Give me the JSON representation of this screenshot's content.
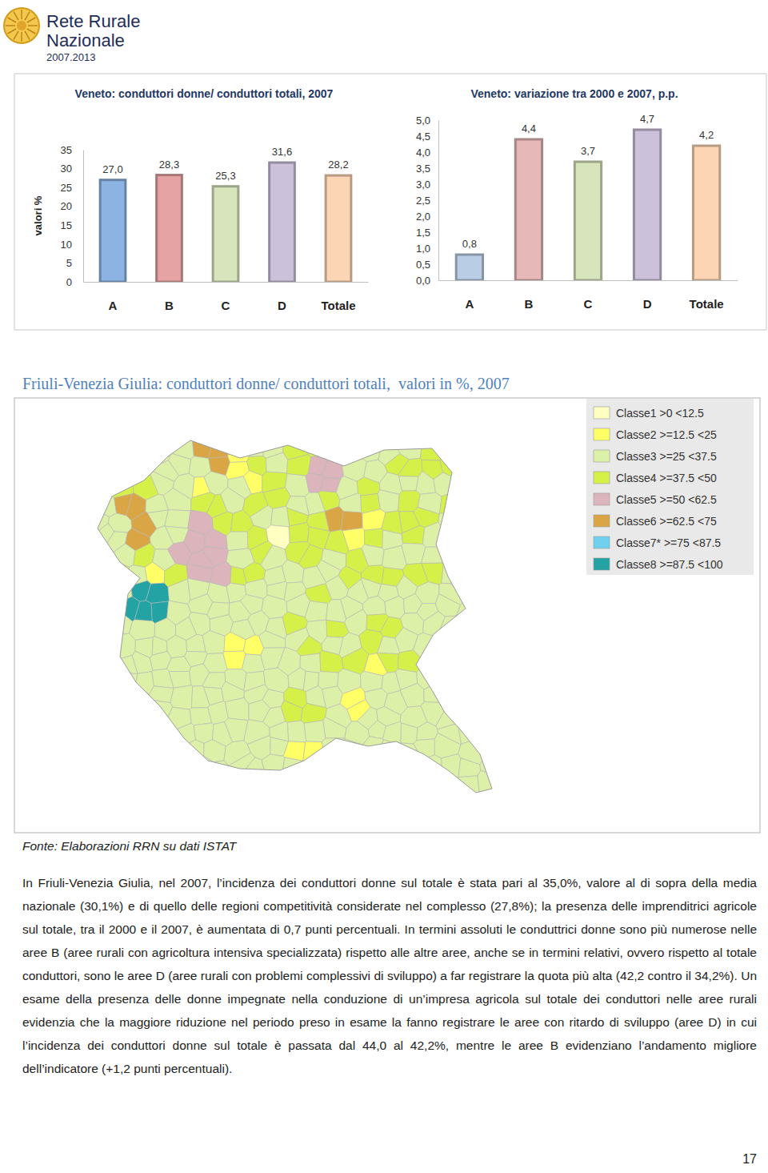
{
  "header": {
    "title_line1": "Rete Rurale",
    "title_line2": "Nazionale",
    "years": "2007.2013"
  },
  "chart_data": [
    {
      "type": "bar",
      "title": "Veneto: conduttori donne/ conduttori totali, 2007",
      "ylabel": "valori %",
      "categories": [
        "A",
        "B",
        "C",
        "D",
        "Totale"
      ],
      "values": [
        27.0,
        28.3,
        25.3,
        31.6,
        28.2
      ],
      "value_labels": [
        "27,0",
        "28,3",
        "25,3",
        "31,6",
        "28,2"
      ],
      "colors": [
        "#8db3e2",
        "#e6a3a3",
        "#d7e4bc",
        "#ccc1da",
        "#fcd5b4"
      ],
      "ylim": [
        0,
        35
      ],
      "yticks": [
        0,
        5,
        10,
        15,
        20,
        25,
        30,
        35
      ],
      "data_labels": true,
      "grid": false
    },
    {
      "type": "bar",
      "title": "Veneto: variazione tra 2000 e 2007, p.p.",
      "categories": [
        "A",
        "B",
        "C",
        "D",
        "Totale"
      ],
      "values": [
        0.8,
        4.4,
        3.7,
        4.7,
        4.2
      ],
      "value_labels": [
        "0,8",
        "4,4",
        "3,7",
        "4,7",
        "4,2"
      ],
      "colors": [
        "#b9cde5",
        "#e6b9b8",
        "#d7e4bc",
        "#ccc1da",
        "#fcd5b4"
      ],
      "ylim": [
        0,
        5
      ],
      "yticks": [
        {
          "value": 0,
          "label": "0,0"
        },
        {
          "value": 0.5,
          "label": "0,5"
        },
        {
          "value": 1,
          "label": "1,0"
        },
        {
          "value": 1.5,
          "label": "1,5"
        },
        {
          "value": 2,
          "label": "2,0"
        },
        {
          "value": 2.5,
          "label": "2,5"
        },
        {
          "value": 3,
          "label": "3,0"
        },
        {
          "value": 3.5,
          "label": "3,5"
        },
        {
          "value": 4,
          "label": "4,0"
        },
        {
          "value": 4.5,
          "label": "4,5"
        },
        {
          "value": 5,
          "label": "5,0"
        }
      ],
      "data_labels": true,
      "grid": false
    }
  ],
  "map": {
    "title": "Friuli-Venezia Giulia: conduttori donne/ conduttori totali,  valori in %, 2007",
    "legend": [
      {
        "label": "Classe1 >0 <12.5",
        "color": "#ffffc2"
      },
      {
        "label": "Classe2 >=12.5 <25",
        "color": "#ffff66"
      },
      {
        "label": "Classe3 >=25 <37.5",
        "color": "#dcf0a8"
      },
      {
        "label": "Classe4 >=37.5 <50",
        "color": "#d6f04a"
      },
      {
        "label": "Classe5 >=50 <62.5",
        "color": "#dbb4bc"
      },
      {
        "label": "Classe6 >=62.5 <75",
        "color": "#d9a545"
      },
      {
        "label": "Classe7* >=75 <87.5",
        "color": "#6fd0f0"
      },
      {
        "label": "Classe8 >=87.5 <100",
        "color": "#23a3a3"
      }
    ]
  },
  "source": "Fonte: Elaborazioni RRN su dati ISTAT",
  "body": {
    "paragraph": "In Friuli-Venezia Giulia, nel 2007, l’incidenza dei conduttori donne sul totale è stata pari al 35,0%, valore al di sopra della media nazionale (30,1%) e di quello delle regioni competitività considerate nel complesso (27,8%); la presenza delle imprenditrici agricole sul totale, tra il 2000 e il 2007, è aumentata di 0,7 punti percentuali. In termini assoluti le conduttrici donne sono più numerose nelle aree B (aree rurali con agricoltura intensiva specializzata) rispetto alle altre aree, anche se in termini relativi, ovvero rispetto al totale conduttori, sono le aree D (aree rurali con problemi complessivi di sviluppo) a far registrare la quota più alta (42,2 contro il 34,2%). Un esame della presenza delle donne impegnate nella conduzione di un’impresa agricola sul totale dei conduttori nelle aree rurali evidenzia che la maggiore riduzione nel periodo preso in esame la fanno registrare le aree con ritardo di sviluppo (aree D) in cui l’incidenza dei conduttori donne sul totale è passata dal 44,0 al 42,2%, mentre le aree B evidenziano l’andamento migliore dell’indicatore (+1,2 punti percentuali)."
  },
  "page_number": 17
}
